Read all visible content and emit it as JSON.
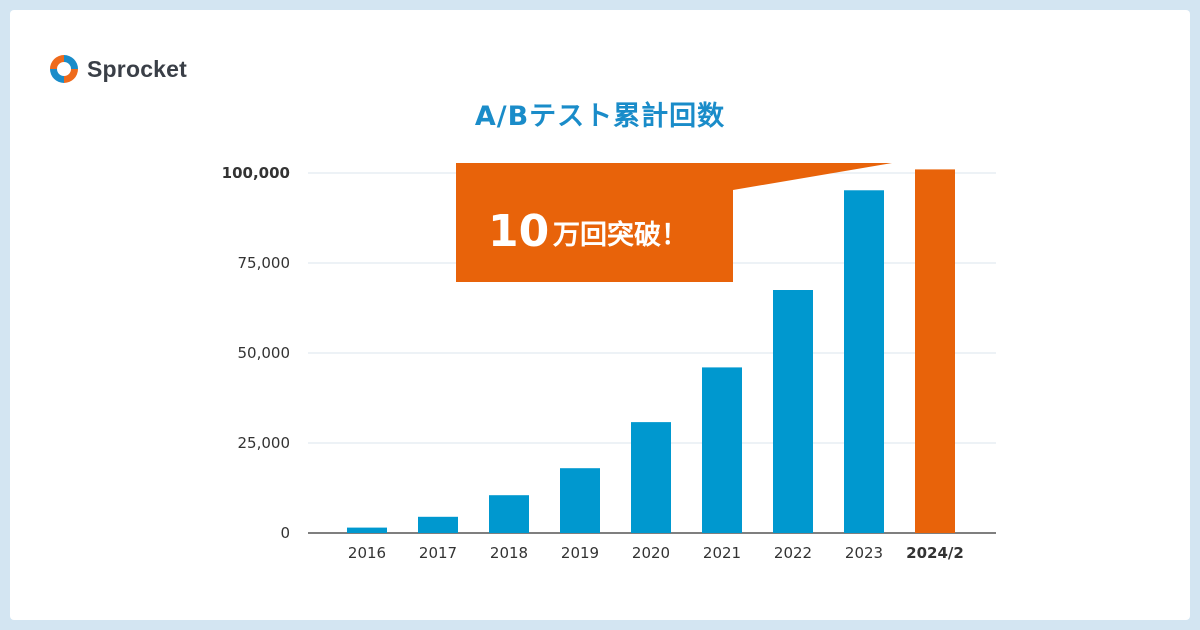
{
  "brand": {
    "name": "Sprocket",
    "colors": {
      "orange": "#ee6a1c",
      "blue": "#1a8cc9"
    }
  },
  "callout": {
    "number": "10",
    "suffix": "万回突破！",
    "color": "#e8630a"
  },
  "chart_data": {
    "type": "bar",
    "title": "A/Bテスト累計回数",
    "categories": [
      "2016",
      "2017",
      "2018",
      "2019",
      "2020",
      "2021",
      "2022",
      "2023",
      "2024/2"
    ],
    "values": [
      1500,
      4500,
      10500,
      18000,
      30800,
      46000,
      67500,
      95200,
      101000
    ],
    "highlight_index": 8,
    "bar_color": "#0098cf",
    "highlight_color": "#e8630a",
    "ylim": [
      0,
      100000
    ],
    "yticks": [
      0,
      25000,
      50000,
      75000,
      100000
    ],
    "ytick_labels": [
      "0",
      "25,000",
      "50,000",
      "75,000",
      "100,000"
    ],
    "grid": true,
    "xlabel": "",
    "ylabel": ""
  }
}
